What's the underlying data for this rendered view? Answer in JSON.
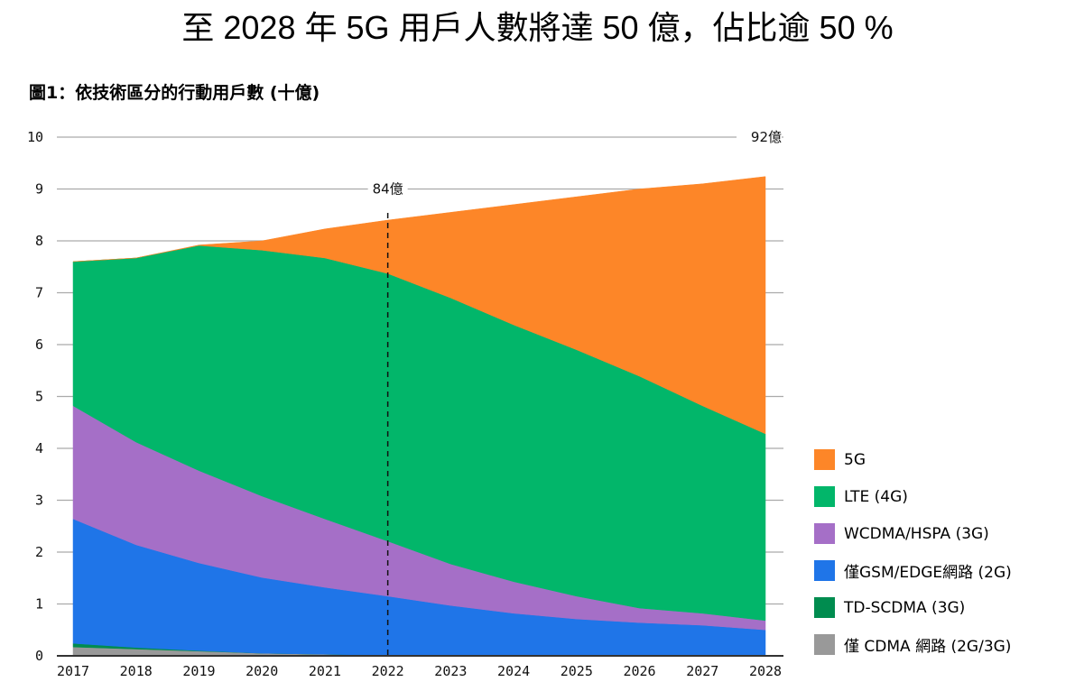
{
  "page": {
    "title": "至 2028 年 5G 用戶人數將達 50 億，佔比逾 50 %"
  },
  "chart_data": {
    "type": "area",
    "stacked": true,
    "title": "圖1：依技術區分的行動用戶數 (十億)",
    "xlabel": "",
    "ylabel": "",
    "x": [
      2017,
      2018,
      2019,
      2020,
      2021,
      2022,
      2023,
      2024,
      2025,
      2026,
      2027,
      2028
    ],
    "x_tick_labels": [
      "2017",
      "2018",
      "2019",
      "2020",
      "2021",
      "2022",
      "2023",
      "2024",
      "2025",
      "2026",
      "2027",
      "2028"
    ],
    "ylim": [
      0,
      10
    ],
    "y_ticks": [
      0,
      1,
      2,
      3,
      4,
      5,
      6,
      7,
      8,
      9,
      10
    ],
    "y_tick_labels": [
      "0",
      "1",
      "2",
      "3",
      "4",
      "5",
      "6",
      "7",
      "8",
      "9",
      "10"
    ],
    "grid": true,
    "legend_position": "right-bottom",
    "series": [
      {
        "name": "僅 CDMA 網路 (2G/3G)",
        "color": "#999999",
        "values": [
          0.17,
          0.13,
          0.09,
          0.05,
          0.03,
          0.01,
          0,
          0,
          0,
          0,
          0,
          0
        ]
      },
      {
        "name": "TD-SCDMA (3G)",
        "color": "#008c4f",
        "values": [
          0.07,
          0.03,
          0.01,
          0.0,
          0.0,
          0.0,
          0,
          0,
          0,
          0,
          0,
          0
        ]
      },
      {
        "name": "僅GSM/EDGE網路 (2G)",
        "color": "#1f75e8",
        "values": [
          2.4,
          1.98,
          1.69,
          1.46,
          1.29,
          1.14,
          0.97,
          0.82,
          0.71,
          0.64,
          0.59,
          0.5
        ]
      },
      {
        "name": "WCDMA/HSPA (3G)",
        "color": "#a56fc7",
        "values": [
          2.18,
          1.98,
          1.78,
          1.57,
          1.32,
          1.06,
          0.8,
          0.61,
          0.44,
          0.28,
          0.23,
          0.18
        ]
      },
      {
        "name": "LTE (4G)",
        "color": "#02b66a",
        "values": [
          2.78,
          3.55,
          4.34,
          4.74,
          5.03,
          5.16,
          5.13,
          4.95,
          4.75,
          4.47,
          4.0,
          3.6
        ]
      },
      {
        "name": "5G",
        "color": "#fd8628",
        "values": [
          0.0,
          0.0,
          0.01,
          0.18,
          0.56,
          1.03,
          1.65,
          2.32,
          2.95,
          3.61,
          4.28,
          4.96
        ]
      }
    ],
    "legend_order": [
      "5G",
      "LTE (4G)",
      "WCDMA/HSPA (3G)",
      "僅GSM/EDGE網路 (2G)",
      "TD-SCDMA (3G)",
      "僅 CDMA 網路 (2G/3G)"
    ],
    "annotations": [
      {
        "text": "84億",
        "x": 2022,
        "y": 9,
        "note": "dashed vertical line at 2022, total 8.4"
      },
      {
        "text": "92億",
        "x": 2028,
        "y": 10,
        "note": "total 9.2 in 2028"
      }
    ],
    "reference_line": {
      "x": 2022,
      "style": "dashed"
    }
  },
  "legend": {
    "items": [
      {
        "label": "5G",
        "color": "#fd8628"
      },
      {
        "label": "LTE (4G)",
        "color": "#02b66a"
      },
      {
        "label": "WCDMA/HSPA (3G)",
        "color": "#a56fc7"
      },
      {
        "label": "僅GSM/EDGE網路 (2G)",
        "color": "#1f75e8"
      },
      {
        "label": "TD-SCDMA (3G)",
        "color": "#008c4f"
      },
      {
        "label": "僅 CDMA 網路 (2G/3G)",
        "color": "#999999"
      }
    ]
  }
}
